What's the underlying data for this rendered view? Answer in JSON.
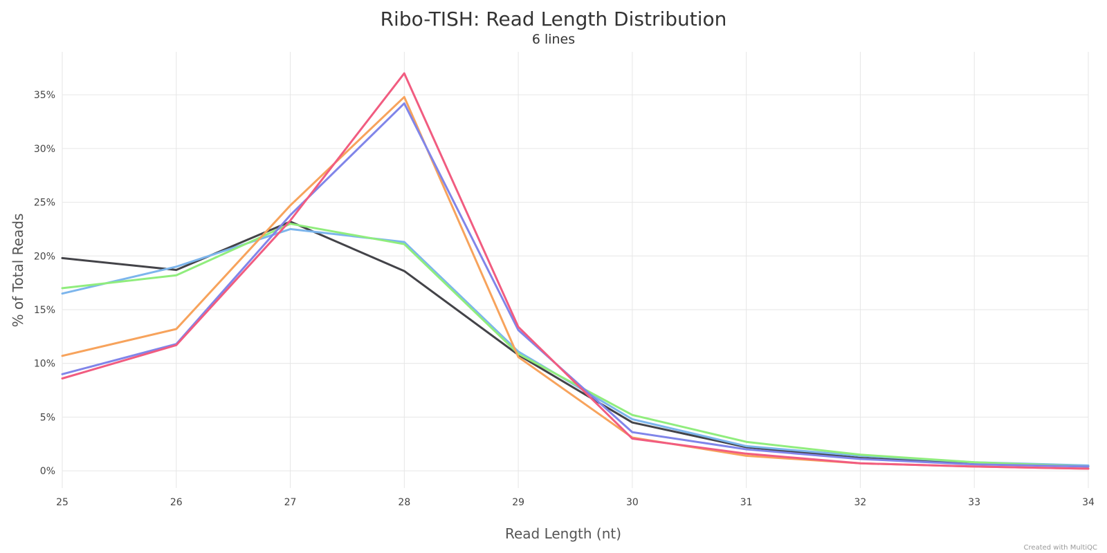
{
  "chart_data": {
    "type": "line",
    "title": "Ribo-TISH: Read Length Distribution",
    "subtitle": "6 lines",
    "xlabel": "Read Length (nt)",
    "ylabel": "% of Total Reads",
    "x": [
      25,
      26,
      27,
      28,
      29,
      30,
      31,
      32,
      33,
      34
    ],
    "xlim": [
      25,
      34
    ],
    "ylim": [
      -1.6,
      39
    ],
    "x_ticks": [
      "25",
      "26",
      "27",
      "28",
      "29",
      "30",
      "31",
      "32",
      "33",
      "34"
    ],
    "y_ticks": [
      {
        "value": 0,
        "label": "0%"
      },
      {
        "value": 5,
        "label": "5%"
      },
      {
        "value": 10,
        "label": "10%"
      },
      {
        "value": 15,
        "label": "15%"
      },
      {
        "value": 20,
        "label": "20%"
      },
      {
        "value": 25,
        "label": "25%"
      },
      {
        "value": 30,
        "label": "30%"
      },
      {
        "value": 35,
        "label": "35%"
      }
    ],
    "grid": true,
    "legend": "none",
    "series": [
      {
        "color": "#434348",
        "values": [
          19.8,
          18.7,
          23.2,
          18.6,
          10.8,
          4.5,
          2.2,
          1.2,
          0.7,
          0.4
        ]
      },
      {
        "color": "#7cb5ec",
        "values": [
          16.5,
          19.0,
          22.5,
          21.3,
          11.1,
          4.8,
          2.3,
          1.4,
          0.8,
          0.5
        ]
      },
      {
        "color": "#90ed7d",
        "values": [
          17.0,
          18.2,
          23.0,
          21.1,
          10.9,
          5.2,
          2.7,
          1.5,
          0.8,
          0.4
        ]
      },
      {
        "color": "#f7a35c",
        "values": [
          10.7,
          13.2,
          24.7,
          34.8,
          10.6,
          3.1,
          1.4,
          0.7,
          0.4,
          0.2
        ]
      },
      {
        "color": "#8085e9",
        "values": [
          9.0,
          11.8,
          23.8,
          34.2,
          13.1,
          3.6,
          2.0,
          1.1,
          0.6,
          0.4
        ]
      },
      {
        "color": "#f15c80",
        "values": [
          8.6,
          11.7,
          23.3,
          37.0,
          13.4,
          3.0,
          1.6,
          0.7,
          0.4,
          0.2
        ]
      }
    ]
  },
  "credit": "Created with MultiQC"
}
